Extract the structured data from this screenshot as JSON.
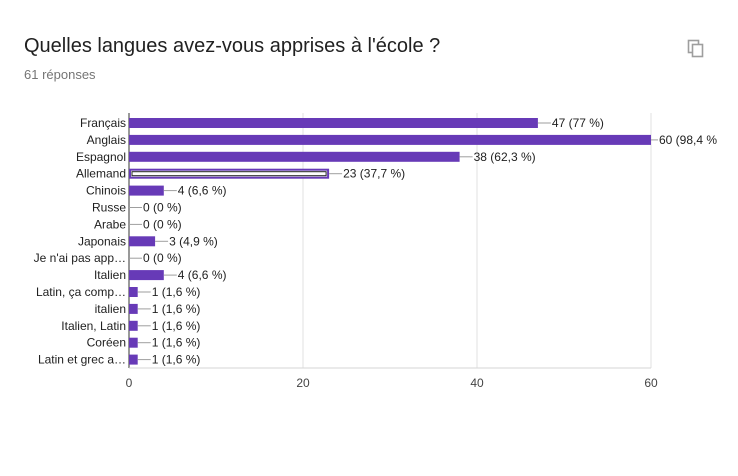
{
  "header": {
    "title": "Quelles langues avez-vous apprises à l'école ?",
    "responses": "61 réponses",
    "copy_icon": "copy-icon"
  },
  "colors": {
    "bar": "#673ab7",
    "bar_selected_fill": "#ffffff",
    "axis_text": "#212121",
    "grid": "#e0e0e0"
  },
  "chart_data": {
    "type": "bar",
    "orientation": "horizontal",
    "categories": [
      "Français",
      "Anglais",
      "Espagnol",
      "Allemand",
      "Chinois",
      "Russe",
      "Arabe",
      "Japonais",
      "Je n'ai pas app…",
      "Italien",
      "Latin, ça comp…",
      "italien",
      "Italien, Latin",
      "Coréen",
      "Latin et grec a…"
    ],
    "values": [
      47,
      60,
      38,
      23,
      4,
      0,
      0,
      3,
      0,
      4,
      1,
      1,
      1,
      1,
      1
    ],
    "data_labels": [
      "47 (77 %)",
      "60 (98,4 %",
      "38 (62,3 %)",
      "23 (37,7 %)",
      "4 (6,6 %)",
      "0 (0 %)",
      "0 (0 %)",
      "3 (4,9 %)",
      "0 (0 %)",
      "4 (6,6 %)",
      "1 (1,6 %)",
      "1 (1,6 %)",
      "1 (1,6 %)",
      "1 (1,6 %)",
      "1 (1,6 %)"
    ],
    "highlighted_index": 3,
    "xlim": [
      0,
      60
    ],
    "xticks": [
      0,
      20,
      40,
      60
    ],
    "grid": true,
    "legend": false,
    "title": "",
    "xlabel": "",
    "ylabel": ""
  }
}
